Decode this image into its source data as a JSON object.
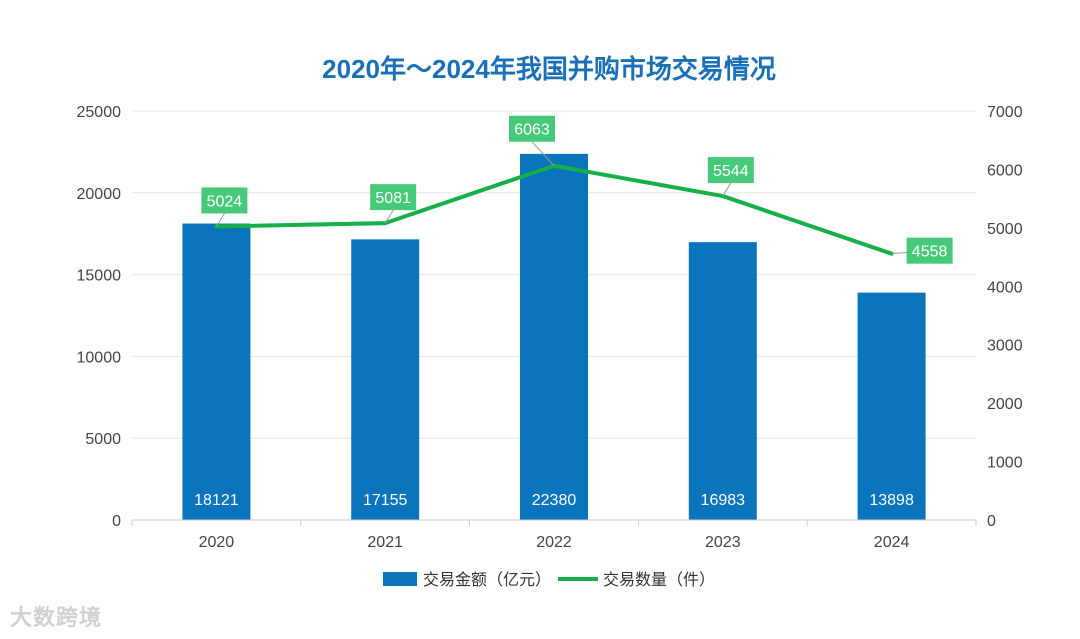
{
  "chart_data": {
    "type": "bar",
    "title": "2020年～2024年我国并购市场交易情况",
    "categories": [
      "2020",
      "2021",
      "2022",
      "2023",
      "2024"
    ],
    "series": [
      {
        "name": "交易金额（亿元）",
        "type": "bar",
        "axis": "left",
        "color": "#0a74bd",
        "values": [
          18121,
          17155,
          22380,
          16983,
          13898
        ]
      },
      {
        "name": "交易数量（件）",
        "type": "line",
        "axis": "right",
        "color": "#16b04a",
        "values": [
          5024,
          5081,
          6063,
          5544,
          4558
        ]
      }
    ],
    "y_left": {
      "min": 0,
      "max": 25000,
      "ticks": [
        0,
        5000,
        10000,
        15000,
        20000,
        25000
      ]
    },
    "y_right": {
      "min": 0,
      "max": 7000,
      "ticks": [
        0,
        1000,
        2000,
        3000,
        4000,
        5000,
        6000,
        7000
      ]
    },
    "label_color": "#47c97a",
    "grid": true,
    "legend_position": "bottom"
  },
  "watermark": "大数跨境"
}
